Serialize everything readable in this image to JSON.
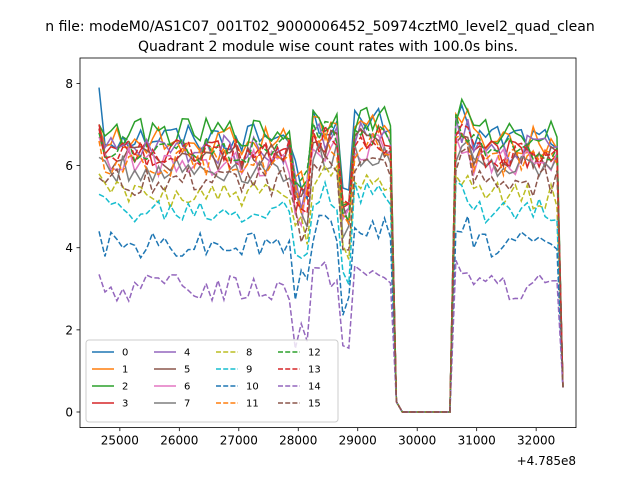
{
  "suptitle": "n file: modeM0/AS1C07_001T02_9000006452_50974cztM0_level2_quad_clean",
  "chart_data": {
    "type": "line",
    "title": "Quadrant 2 module wise count rates with 100.0s bins.",
    "xlabel": "",
    "ylabel": "",
    "x_offset_label": "+4.785e8",
    "x_offset": 478500000,
    "xlim": [
      24330,
      32670
    ],
    "ylim": [
      -0.38,
      8.62
    ],
    "xticks": [
      25000,
      26000,
      27000,
      28000,
      29000,
      30000,
      31000,
      32000
    ],
    "xtick_labels": [
      "25000",
      "26000",
      "27000",
      "28000",
      "29000",
      "30000",
      "31000",
      "32000"
    ],
    "yticks": [
      0,
      2,
      4,
      6,
      8
    ],
    "ytick_labels": [
      "0",
      "2",
      "4",
      "6",
      "8"
    ],
    "grid": false,
    "legend_location": "lower-left",
    "legend_columns": 4,
    "x_start": 24650,
    "x_step": 100,
    "series": [
      {
        "name": "0",
        "color": "#1f77b4",
        "dash": "solid",
        "base": 6.7,
        "start": 7.9,
        "gap": 0.0
      },
      {
        "name": "1",
        "color": "#ff7f0e",
        "dash": "solid",
        "base": 6.6,
        "start": 7.0,
        "gap": 0.0
      },
      {
        "name": "2",
        "color": "#2ca02c",
        "dash": "solid",
        "base": 6.8,
        "start": 7.0,
        "gap": 0.0
      },
      {
        "name": "3",
        "color": "#d62728",
        "dash": "solid",
        "base": 6.3,
        "start": 7.0,
        "gap": 0.0
      },
      {
        "name": "4",
        "color": "#9467bd",
        "dash": "solid",
        "base": 6.4,
        "start": 6.8,
        "gap": 0.0
      },
      {
        "name": "5",
        "color": "#8c564b",
        "dash": "solid",
        "base": 6.2,
        "start": 6.9,
        "gap": 0.0
      },
      {
        "name": "6",
        "color": "#e377c2",
        "dash": "solid",
        "base": 6.1,
        "start": 6.7,
        "gap": 0.0
      },
      {
        "name": "7",
        "color": "#7f7f7f",
        "dash": "solid",
        "base": 5.9,
        "start": 6.2,
        "gap": 0.0
      },
      {
        "name": "8",
        "color": "#bcbd22",
        "dash": "dashed",
        "base": 5.3,
        "start": 5.8,
        "gap": 0.0
      },
      {
        "name": "9",
        "color": "#17becf",
        "dash": "dashed",
        "base": 4.9,
        "start": 5.3,
        "gap": 0.0
      },
      {
        "name": "10",
        "color": "#1f77b4",
        "dash": "dashed",
        "base": 4.1,
        "start": 4.4,
        "gap": 0.0
      },
      {
        "name": "11",
        "color": "#ff7f0e",
        "dash": "dashed",
        "base": 6.1,
        "start": 6.6,
        "gap": 0.0
      },
      {
        "name": "12",
        "color": "#2ca02c",
        "dash": "dashed",
        "base": 6.4,
        "start": 6.8,
        "gap": 0.0
      },
      {
        "name": "13",
        "color": "#d62728",
        "dash": "dashed",
        "base": 6.3,
        "start": 6.9,
        "gap": 0.0
      },
      {
        "name": "14",
        "color": "#9467bd",
        "dash": "dashed",
        "base": 3.0,
        "start": 3.35,
        "gap": 0.0
      },
      {
        "name": "15",
        "color": "#8c564b",
        "dash": "dashed",
        "base": 5.6,
        "start": 5.7,
        "gap": 0.0
      }
    ]
  }
}
